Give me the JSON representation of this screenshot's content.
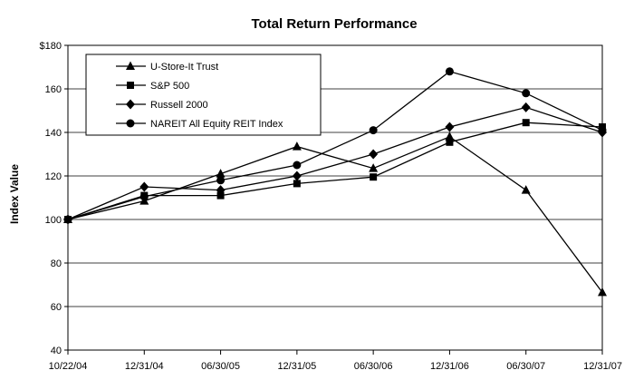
{
  "chart_data": {
    "type": "line",
    "title": "Total Return Performance",
    "xlabel": "",
    "ylabel": "Index Value",
    "categories": [
      "10/22/04",
      "12/31/04",
      "06/30/05",
      "12/31/05",
      "06/30/06",
      "12/31/06",
      "06/30/07",
      "12/31/07"
    ],
    "y_tick_labels": [
      "40",
      "60",
      "80",
      "100",
      "120",
      "140",
      "160",
      "$180"
    ],
    "ylim": [
      40,
      180
    ],
    "y_tick_step": 20,
    "grid": "horizontal",
    "legend_placement": "top-left",
    "line_color": "#000000",
    "series": [
      {
        "name": "U-Store-It Trust",
        "marker": "triangle",
        "values": [
          100,
          108.5,
          121,
          133.5,
          123.5,
          138,
          113.5,
          66.5
        ]
      },
      {
        "name": "S&P 500",
        "marker": "square",
        "values": [
          100,
          111,
          111,
          116.5,
          119.5,
          135.5,
          144.5,
          142.5
        ]
      },
      {
        "name": "Russell 2000",
        "marker": "diamond",
        "values": [
          100,
          115,
          113.5,
          120,
          130,
          142.5,
          151.5,
          140
        ]
      },
      {
        "name": "NAREIT All Equity REIT Index",
        "marker": "circle",
        "values": [
          100,
          110.5,
          118,
          125,
          141,
          168,
          158,
          141
        ]
      }
    ]
  }
}
